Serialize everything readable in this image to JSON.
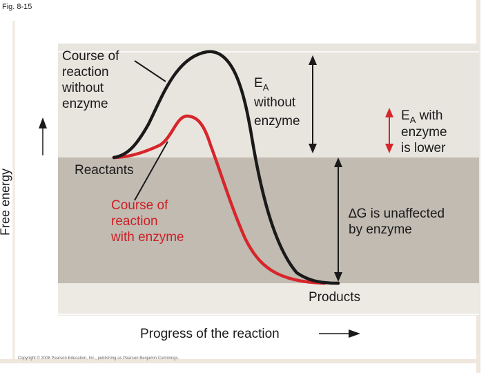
{
  "figure": {
    "label": "Fig. 8-15",
    "copyright": "Copyright © 2008 Pearson Education, Inc., publishing as Pearson Benjamin Cummings."
  },
  "axes": {
    "y_label": "Free energy",
    "x_label": "Progress of the reaction"
  },
  "labels": {
    "course_without": [
      "Course of",
      "reaction",
      "without",
      "enzyme"
    ],
    "ea_without": {
      "main": "E",
      "sub": "A",
      "lines": [
        "without",
        "enzyme"
      ]
    },
    "ea_with": {
      "main": "E",
      "sub": "A",
      "after": " with",
      "lines": [
        "enzyme",
        "is lower"
      ]
    },
    "reactants": "Reactants",
    "course_with": [
      "Course of",
      "reaction",
      "with enzyme"
    ],
    "delta_g": [
      "∆G is unaffected",
      "by enzyme"
    ],
    "products": "Products"
  },
  "colors": {
    "curve_without": "#1a1a1a",
    "curve_with": "#d7262b",
    "band_light": "#e8e5df",
    "band_dark": "#c1bbb2"
  }
}
